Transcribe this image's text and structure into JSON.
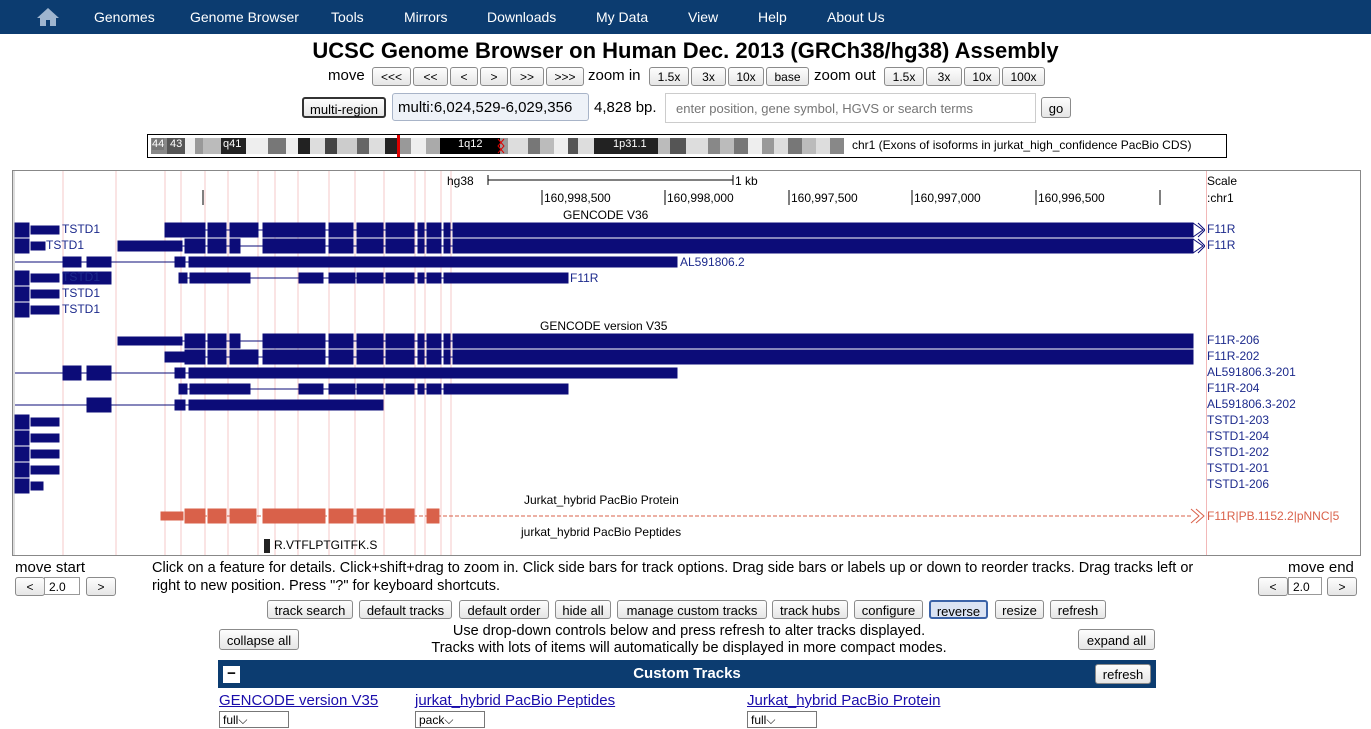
{
  "nav": {
    "items": [
      "Genomes",
      "Genome Browser",
      "Tools",
      "Mirrors",
      "Downloads",
      "My Data",
      "View",
      "Help",
      "About Us"
    ]
  },
  "title": "UCSC Genome Browser on Human Dec. 2013 (GRCh38/hg38) Assembly",
  "move": {
    "label": "move",
    "buttons": [
      "<<<",
      "<<",
      "<",
      ">",
      ">>",
      ">>>"
    ]
  },
  "zoom_in": {
    "label": "zoom in",
    "buttons": [
      "1.5x",
      "3x",
      "10x",
      "base"
    ]
  },
  "zoom_out": {
    "label": "zoom out",
    "buttons": [
      "1.5x",
      "3x",
      "10x",
      "100x"
    ]
  },
  "position": {
    "multi_region_label": "multi-region",
    "value": "multi:6,024,529-6,029,356",
    "bp": "4,828 bp.",
    "search_placeholder": "enter position, gene symbol, HGVS or search terms",
    "go_label": "go"
  },
  "ideogram": {
    "bands": [
      "44",
      "43",
      "q41",
      "1q12",
      "1p31.1"
    ],
    "caption": "chr1 (Exons of isoforms in jurkat_high_confidence PacBio CDS)"
  },
  "ruler": {
    "assembly": "hg38",
    "scale_text": "1 kb",
    "ticks": [
      "160,998,500",
      "160,998,000",
      "160,997,500",
      "160,997,000",
      "160,996,500"
    ],
    "scale_label": "Scale",
    "chrom_label": ":chr1"
  },
  "tracks": {
    "gencode_v36_title": "GENCODE V36",
    "gencode_v36_labels": [
      "TSTD1",
      "TSTD1",
      "TSTD1",
      "TSTD1",
      "TSTD1"
    ],
    "gencode_v36_inline": [
      "AL591806.2",
      "F11R"
    ],
    "gencode_v36_side": [
      "F11R",
      "F11R"
    ],
    "gencode_v35_title": "GENCODE version V35",
    "gencode_v35_side": [
      "F11R-206",
      "F11R-202",
      "AL591806.3-201",
      "F11R-204",
      "AL591806.3-202",
      "TSTD1-203",
      "TSTD1-204",
      "TSTD1-202",
      "TSTD1-201",
      "TSTD1-206"
    ],
    "protein_title": "Jurkat_hybrid PacBio Protein",
    "protein_side": "F11R|PB.1152.2|pNNC|5",
    "peptides_title": "jurkat_hybrid PacBio Peptides",
    "peptide_label": "R.VTFLPTGITFK.S"
  },
  "move_start": {
    "label": "move start",
    "value": "2.0",
    "left": "<",
    "right": ">"
  },
  "move_end": {
    "label": "move end",
    "value": "2.0",
    "left": "<",
    "right": ">"
  },
  "help_text": "Click on a feature for details. Click+shift+drag to zoom in. Click side bars for track options. Drag side bars or labels up or down to reorder tracks. Drag tracks left or right to new position. Press \"?\" for keyboard shortcuts.",
  "toolbar": [
    "track search",
    "default tracks",
    "default order",
    "hide all",
    "manage custom tracks",
    "track hubs",
    "configure",
    "reverse",
    "resize",
    "refresh"
  ],
  "collapse_all": "collapse all",
  "expand_all": "expand all",
  "info_line1": "Use drop-down controls below and press refresh to alter tracks displayed.",
  "info_line2": "Tracks with lots of items will automatically be displayed in more compact modes.",
  "custom_tracks": {
    "header": "Custom Tracks",
    "collapse_symbol": "−",
    "refresh": "refresh",
    "items": [
      {
        "name": "GENCODE version V35",
        "mode": "full"
      },
      {
        "name": "jurkat_hybrid PacBio Peptides",
        "mode": "pack"
      },
      {
        "name": "Jurkat_hybrid PacBio Protein",
        "mode": "full"
      }
    ]
  },
  "colors": {
    "nav": "#0c3c70",
    "gene": "#0c0c78",
    "protein": "#d9614a",
    "label_blue": "#1c2a8c"
  }
}
